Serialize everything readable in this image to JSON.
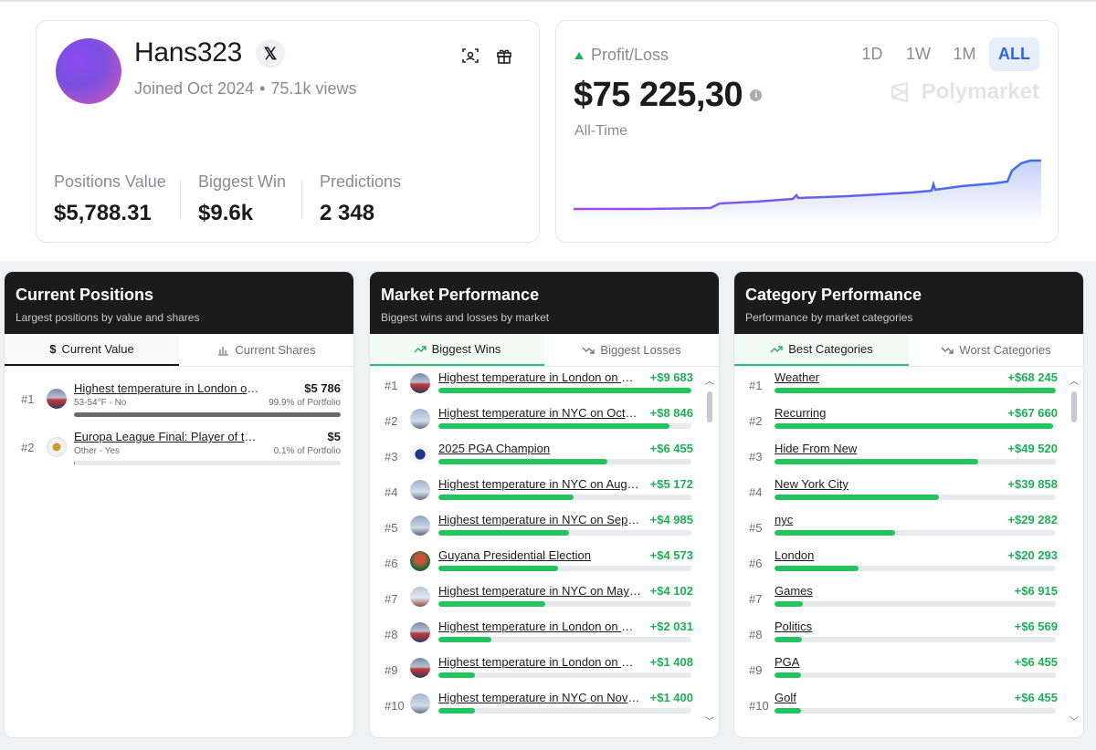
{
  "profile": {
    "username": "Hans323",
    "x_icon": "x-logo-icon",
    "joined": "Joined Oct 2024",
    "separator": "•",
    "views": "75.1k views",
    "stats": [
      {
        "label": "Positions Value",
        "value": "$5,788.31"
      },
      {
        "label": "Biggest Win",
        "value": "$9.6k"
      },
      {
        "label": "Predictions",
        "value": "2 348"
      }
    ]
  },
  "pnl": {
    "label": "Profit/Loss",
    "value": "$75 225,30",
    "period": "All-Time",
    "brand": "Polymarket",
    "ranges": [
      "1D",
      "1W",
      "1M",
      "ALL"
    ],
    "active_range": "ALL",
    "accent": "#8b5cf6",
    "up_color": "#1fb25a"
  },
  "positions": {
    "title": "Current Positions",
    "subtitle": "Largest positions by value and shares",
    "tabs": [
      "Current Value",
      "Current Shares"
    ],
    "items": [
      {
        "rank": "#1",
        "title": "Highest temperature in London on...",
        "amount": "$5 786",
        "sub": "53-54°F - No",
        "pct": "99.9% of Portfolio",
        "fill": 1.0
      },
      {
        "rank": "#2",
        "title": "Europa League Final: Player of the ...",
        "amount": "$5",
        "sub": "Other - Yes",
        "pct": "0.1% of Portfolio",
        "fill": 0.005
      }
    ]
  },
  "market": {
    "title": "Market Performance",
    "subtitle": "Biggest wins and losses by market",
    "tabs": [
      "Biggest Wins",
      "Biggest Losses"
    ],
    "items": [
      {
        "rank": "#1",
        "title": "Highest temperature in London on No...",
        "amount": "+$9 683",
        "value": 9683
      },
      {
        "rank": "#2",
        "title": "Highest temperature in NYC on Octo...",
        "amount": "+$8 846",
        "value": 8846
      },
      {
        "rank": "#3",
        "title": "2025 PGA Champion",
        "amount": "+$6 455",
        "value": 6455
      },
      {
        "rank": "#4",
        "title": "Highest temperature in NYC on Augus...",
        "amount": "+$5 172",
        "value": 5172
      },
      {
        "rank": "#5",
        "title": "Highest temperature in NYC on Septe...",
        "amount": "+$4 985",
        "value": 4985
      },
      {
        "rank": "#6",
        "title": "Guyana Presidential Election",
        "amount": "+$4 573",
        "value": 4573
      },
      {
        "rank": "#7",
        "title": "Highest temperature in NYC on May 5?",
        "amount": "+$4 102",
        "value": 4102
      },
      {
        "rank": "#8",
        "title": "Highest temperature in London on Ma...",
        "amount": "+$2 031",
        "value": 2031
      },
      {
        "rank": "#9",
        "title": "Highest temperature in London on Oc...",
        "amount": "+$1 408",
        "value": 1408
      },
      {
        "rank": "#10",
        "title": "Highest temperature in NYC on Nove...",
        "amount": "+$1 400",
        "value": 1400
      }
    ]
  },
  "category": {
    "title": "Category Performance",
    "subtitle": "Performance by market categories",
    "tabs": [
      "Best Categories",
      "Worst Categories"
    ],
    "items": [
      {
        "rank": "#1",
        "title": "Weather",
        "amount": "+$68 245",
        "value": 68245
      },
      {
        "rank": "#2",
        "title": "Recurring",
        "amount": "+$67 660",
        "value": 67660
      },
      {
        "rank": "#3",
        "title": "Hide From New",
        "amount": "+$49 520",
        "value": 49520
      },
      {
        "rank": "#4",
        "title": "New York City",
        "amount": "+$39 858",
        "value": 39858
      },
      {
        "rank": "#5",
        "title": "nyc",
        "amount": "+$29 282",
        "value": 29282
      },
      {
        "rank": "#6",
        "title": "London",
        "amount": "+$20 293",
        "value": 20293
      },
      {
        "rank": "#7",
        "title": "Games",
        "amount": "+$6 915",
        "value": 6915
      },
      {
        "rank": "#8",
        "title": "Politics",
        "amount": "+$6 569",
        "value": 6569
      },
      {
        "rank": "#9",
        "title": "PGA",
        "amount": "+$6 455",
        "value": 6455
      },
      {
        "rank": "#10",
        "title": "Golf",
        "amount": "+$6 455",
        "value": 6455
      }
    ]
  }
}
